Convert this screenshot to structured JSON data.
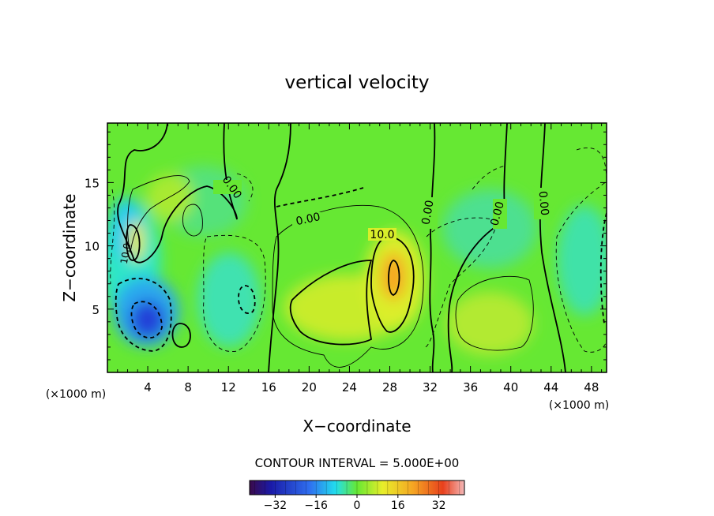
{
  "chart_data": {
    "type": "heatmap",
    "title": "vertical velocity",
    "xlabel": "X−coordinate",
    "ylabel": "Z−coordinate",
    "x_unit": "(×1000 m)",
    "y_unit": "(×1000 m)",
    "xlim": [
      0,
      49.5
    ],
    "ylim": [
      0,
      19.7
    ],
    "x_ticks": [
      4,
      8,
      12,
      16,
      20,
      24,
      28,
      32,
      36,
      40,
      44,
      48
    ],
    "x_tick_labels": [
      "4",
      "8",
      "12",
      "16",
      "20",
      "24",
      "28",
      "32",
      "36",
      "40",
      "44",
      "48"
    ],
    "y_ticks": [
      5,
      10,
      15
    ],
    "y_tick_labels": [
      "5",
      "10",
      "15"
    ],
    "contour_interval_label": "CONTOUR INTERVAL = 5.000E+00",
    "contour_labels": [
      "0.00",
      "0.00",
      "0.00",
      "0.00",
      "0.00",
      "10.0",
      "10.0"
    ],
    "colorbar": {
      "min": -42,
      "max": 42,
      "ticks": [
        -32,
        -16,
        0,
        16,
        32
      ],
      "tick_labels": [
        "−32",
        "−16",
        "0",
        "16",
        "32"
      ]
    },
    "features": [
      {
        "kind": "max",
        "x": 28.8,
        "z": 7.5,
        "value": 22
      },
      {
        "kind": "max",
        "x": 21,
        "z": 5,
        "value": 9
      },
      {
        "kind": "max",
        "x": 38.5,
        "z": 3.5,
        "value": 8
      },
      {
        "kind": "max",
        "x": 2.9,
        "z": 10.5,
        "value": 9
      },
      {
        "kind": "min",
        "x": 4,
        "z": 3.8,
        "value": -26
      },
      {
        "kind": "min",
        "x": 1.5,
        "z": 6.5,
        "value": -12
      },
      {
        "kind": "min",
        "x": 13.5,
        "z": 5.2,
        "value": -7
      }
    ]
  },
  "colors": {
    "background_field": "#66e833",
    "positive_peak": "#f5a623",
    "negative_peak": "#2440d8"
  }
}
